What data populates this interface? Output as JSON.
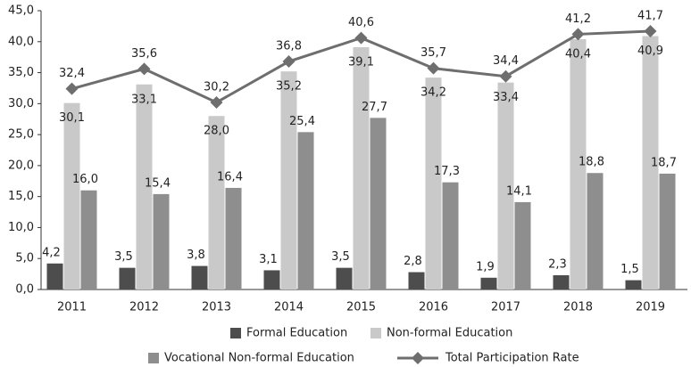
{
  "chart_data": {
    "type": "bar",
    "categories": [
      "2011",
      "2012",
      "2013",
      "2014",
      "2015",
      "2016",
      "2017",
      "2018",
      "2019"
    ],
    "series": [
      {
        "name": "Formal Education",
        "color": "#4d4d4d",
        "values": [
          4.2,
          3.5,
          3.8,
          3.1,
          3.5,
          2.8,
          1.9,
          2.3,
          1.5
        ],
        "value_labels": [
          "4,2",
          "3,5",
          "3,8",
          "3,1",
          "3,5",
          "2,8",
          "1,9",
          "2,3",
          "1,5"
        ]
      },
      {
        "name": "Non-formal Education",
        "color": "#c9c9c9",
        "values": [
          30.1,
          33.1,
          28.0,
          35.2,
          39.1,
          34.2,
          33.4,
          40.4,
          40.9
        ],
        "value_labels": [
          "30,1",
          "33,1",
          "28,0",
          "35,2",
          "39,1",
          "34,2",
          "33,4",
          "40,4",
          "40,9"
        ]
      },
      {
        "name": "Vocational Non-formal Education",
        "color": "#8e8e8e",
        "values": [
          16.0,
          15.4,
          16.4,
          25.4,
          27.7,
          17.3,
          14.1,
          18.8,
          18.7
        ],
        "value_labels": [
          "16,0",
          "15,4",
          "16,4",
          "25,4",
          "27,7",
          "17,3",
          "14,1",
          "18,8",
          "18,7"
        ]
      },
      {
        "name": "Total Participation Rate",
        "color": "#6e6e6e",
        "type": "line",
        "values": [
          32.4,
          35.6,
          30.2,
          36.8,
          40.6,
          35.7,
          34.4,
          41.2,
          41.7
        ],
        "value_labels": [
          "32,4",
          "35,6",
          "30,2",
          "36,8",
          "40,6",
          "35,7",
          "34,4",
          "41,2",
          "41,7"
        ]
      }
    ],
    "ylim": [
      0,
      45
    ],
    "yticks": [
      {
        "value": 0,
        "label": "0,0"
      },
      {
        "value": 5,
        "label": "5,0"
      },
      {
        "value": 10,
        "label": "10,0"
      },
      {
        "value": 15,
        "label": "15,0"
      },
      {
        "value": 20,
        "label": "20,0"
      },
      {
        "value": 25,
        "label": "25,0"
      },
      {
        "value": 30,
        "label": "30,0"
      },
      {
        "value": 35,
        "label": "35,0"
      },
      {
        "value": 40,
        "label": "40,0"
      },
      {
        "value": 45,
        "label": "45,0"
      }
    ],
    "grid": false,
    "legend": "bottom"
  }
}
